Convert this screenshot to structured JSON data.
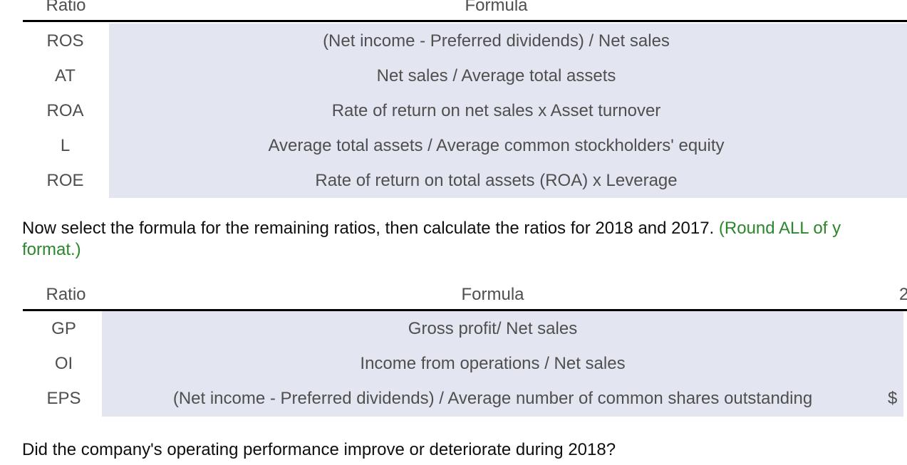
{
  "palette": {
    "shade": "#e3e6f1",
    "table_text": "#4f4f4f",
    "body_text": "#0f0f0f",
    "green_text": "#2b872b",
    "rule": "#000000"
  },
  "table1": {
    "headers": {
      "ratio": "Ratio",
      "formula": "Formula"
    },
    "rows": [
      {
        "ratio": "ROS",
        "formula": "(Net income - Preferred dividends) / Net sales"
      },
      {
        "ratio": "AT",
        "formula": "Net sales / Average total assets"
      },
      {
        "ratio": "ROA",
        "formula": "Rate of return on net sales x Asset turnover"
      },
      {
        "ratio": "L",
        "formula": "Average total assets / Average common stockholders' equity"
      },
      {
        "ratio": "ROE",
        "formula": "Rate of return on total assets (ROA) x Leverage"
      }
    ]
  },
  "instruction": {
    "text_black": "Now select the formula for the remaining ratios, then calculate the ratios for 2018 and 2017. ",
    "text_green_line1": "(Round ALL of y",
    "text_green_line2": "format.)"
  },
  "table2": {
    "headers": {
      "ratio": "Ratio",
      "formula": "Formula",
      "year_partial": "2"
    },
    "rows": [
      {
        "ratio": "GP",
        "formula": "Gross profit/ Net sales",
        "value_prefix": ""
      },
      {
        "ratio": "OI",
        "formula": "Income from operations / Net sales",
        "value_prefix": ""
      },
      {
        "ratio": "EPS",
        "formula": "(Net income - Preferred dividends) / Average number of common shares outstanding",
        "value_prefix": "$"
      }
    ]
  },
  "question": "Did the company's operating performance improve or deteriorate during 2018?"
}
